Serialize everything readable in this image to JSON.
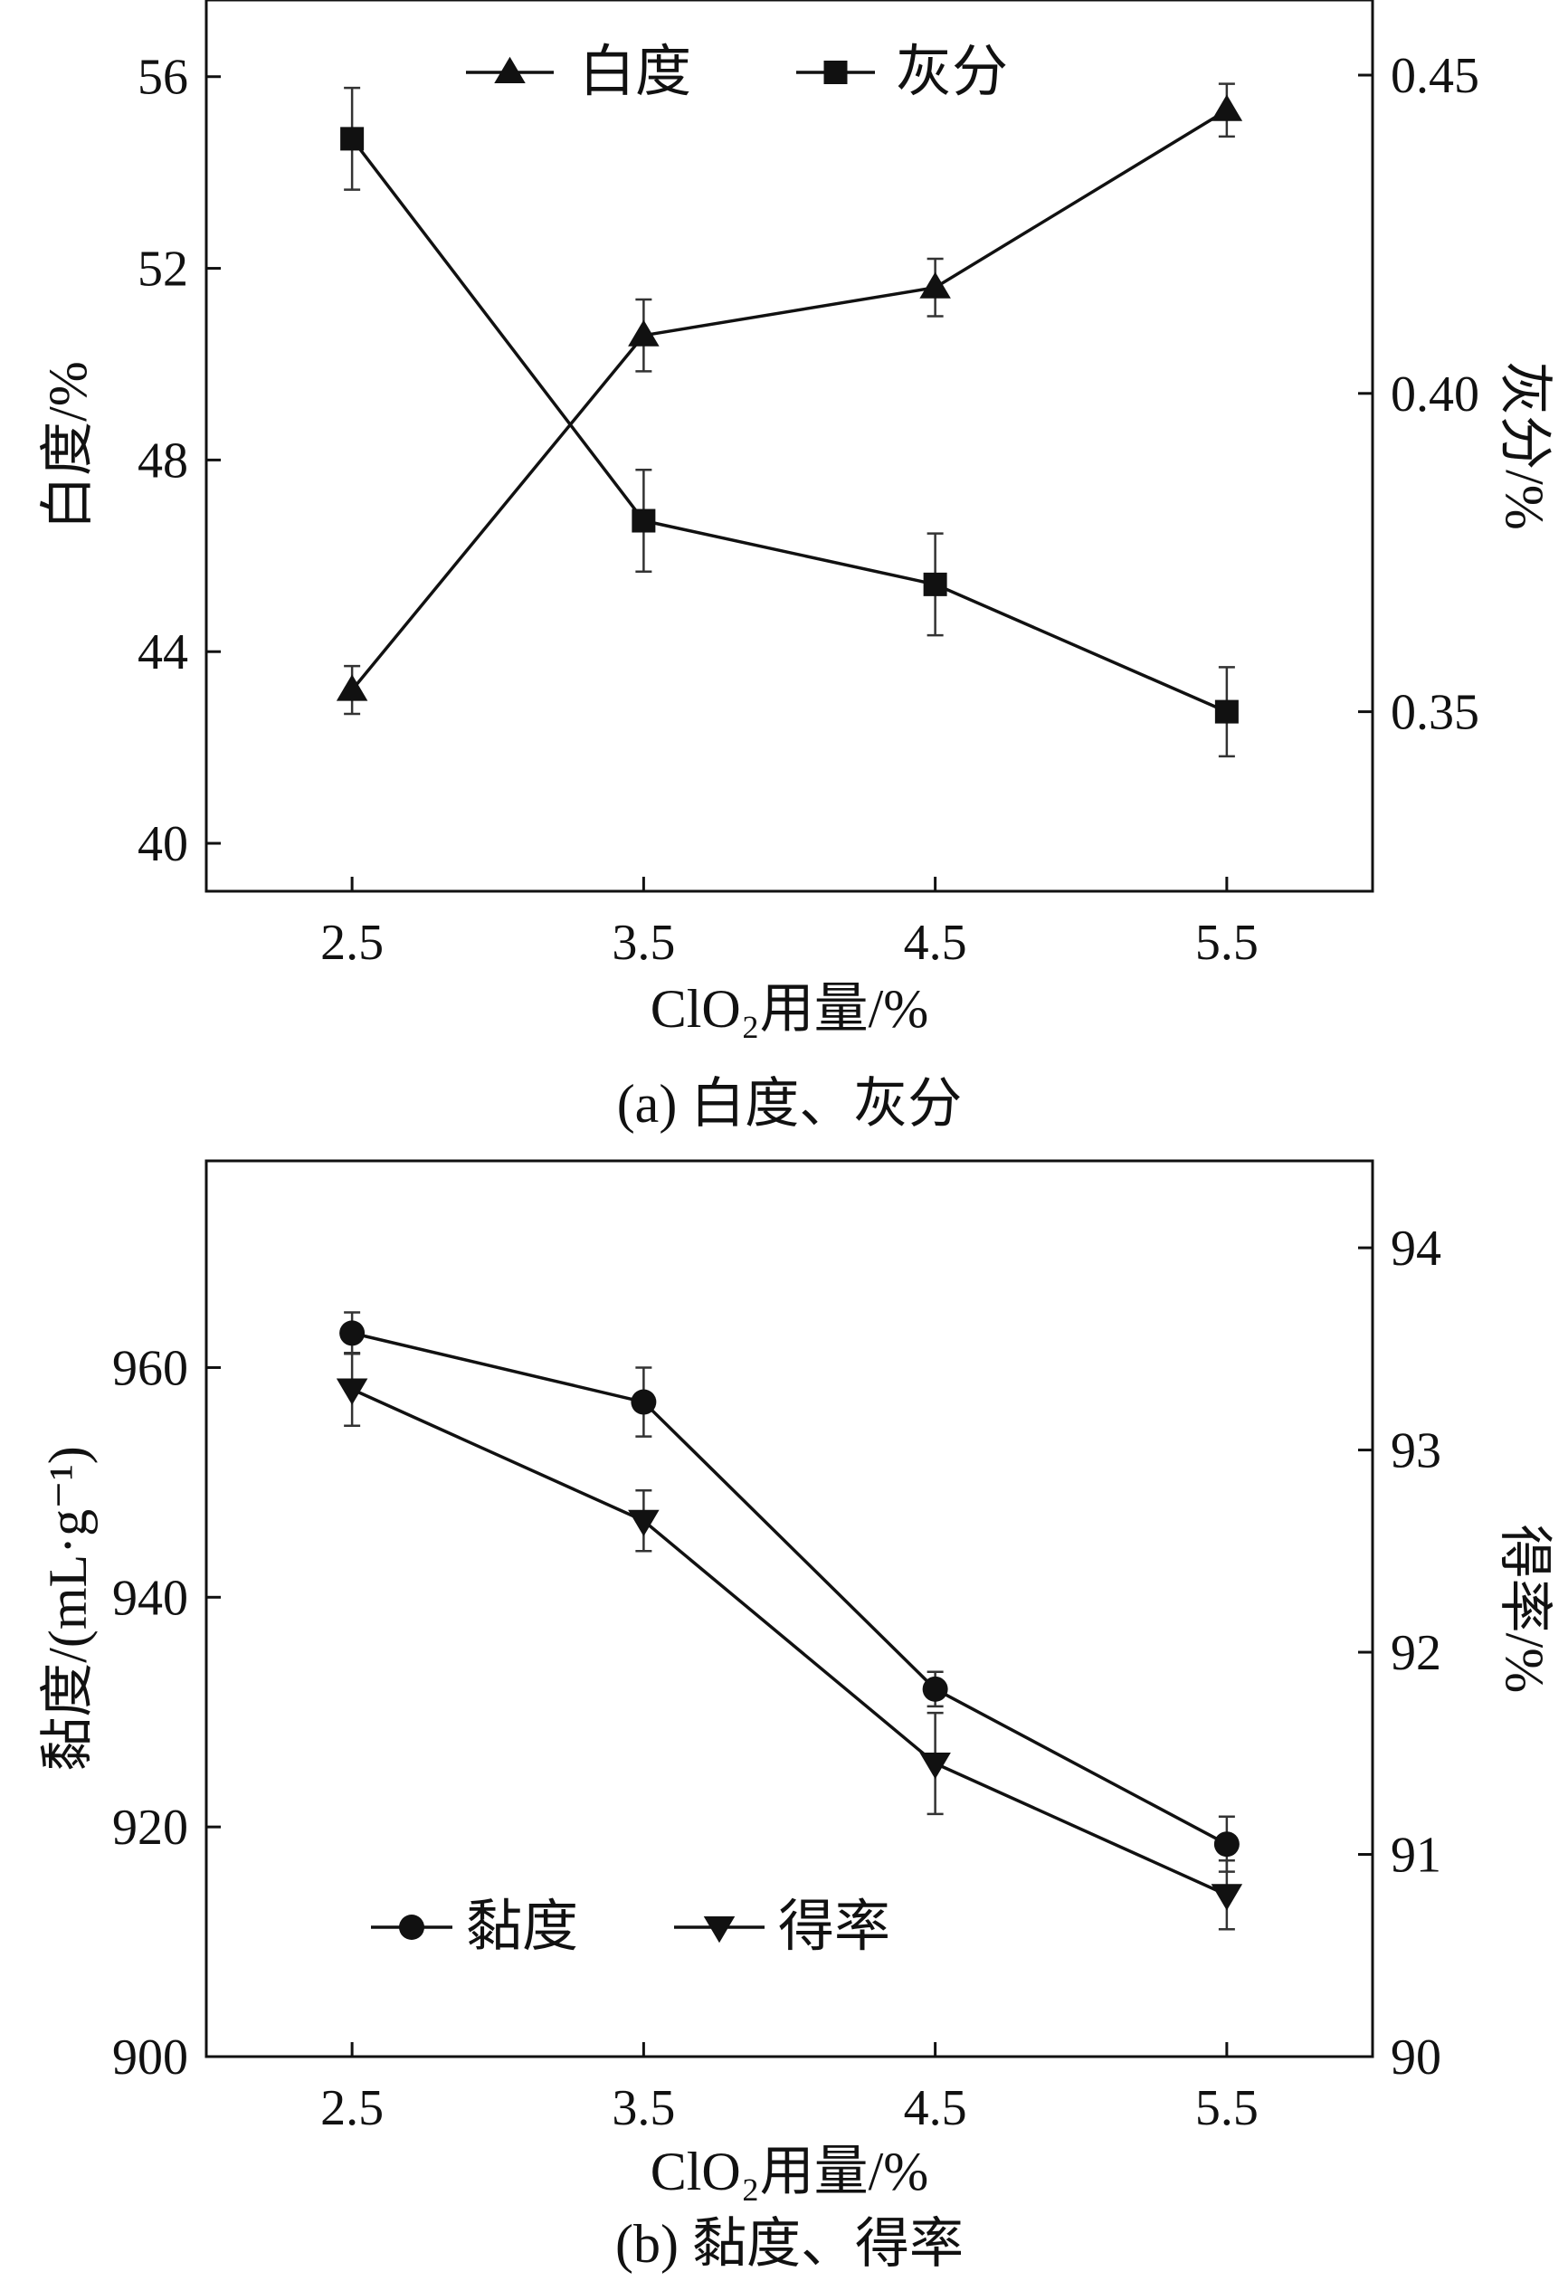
{
  "chart_data": [
    {
      "type": "line",
      "caption": "(a) 白度、灰分",
      "x_title": "ClO₂用量/%",
      "x_categories": [
        "2.5",
        "3.5",
        "4.5",
        "5.5"
      ],
      "x_values": [
        2.5,
        3.5,
        4.5,
        5.5
      ],
      "x_range": [
        2.0,
        6.0
      ],
      "left_axis": {
        "title": "白度/%",
        "range": [
          39,
          57.6
        ],
        "ticks": [
          40,
          44,
          48,
          52,
          56
        ],
        "tick_labels": [
          "40",
          "44",
          "48",
          "52",
          "56"
        ]
      },
      "right_axis": {
        "title": "灰分/%",
        "range": [
          0.3218,
          0.4618
        ],
        "ticks": [
          0.35,
          0.4,
          0.45
        ],
        "tick_labels": [
          "0.35",
          "0.40",
          "0.45"
        ]
      },
      "legend_position": "top-center",
      "series": [
        {
          "name": "白度",
          "axis": "left",
          "marker": "triangle-up",
          "values": [
            43.2,
            50.6,
            51.6,
            55.3
          ],
          "errors": [
            0.5,
            0.75,
            0.6,
            0.55
          ]
        },
        {
          "name": "灰分",
          "axis": "right",
          "marker": "square",
          "values": [
            0.44,
            0.38,
            0.37,
            0.35
          ],
          "errors": [
            0.008,
            0.008,
            0.008,
            0.007
          ]
        }
      ]
    },
    {
      "type": "line",
      "caption": "(b) 黏度、得率",
      "x_title": "ClO₂用量/%",
      "x_categories": [
        "2.5",
        "3.5",
        "4.5",
        "5.5"
      ],
      "x_values": [
        2.5,
        3.5,
        4.5,
        5.5
      ],
      "x_range": [
        2.0,
        6.0
      ],
      "left_axis": {
        "title": "黏度/(mL·g⁻¹)",
        "range": [
          900,
          978
        ],
        "ticks": [
          900,
          920,
          940,
          960
        ],
        "tick_labels": [
          "900",
          "920",
          "940",
          "960"
        ]
      },
      "right_axis": {
        "title": "得率/%",
        "range": [
          90,
          94.43
        ],
        "ticks": [
          90,
          91,
          92,
          93,
          94
        ],
        "tick_labels": [
          "90",
          "91",
          "92",
          "93",
          "94"
        ]
      },
      "legend_position": "bottom-left",
      "series": [
        {
          "name": "黏度",
          "axis": "left",
          "marker": "circle",
          "values": [
            963.0,
            957.0,
            932.0,
            918.5
          ],
          "errors": [
            1.8,
            3.0,
            1.5,
            2.4
          ]
        },
        {
          "name": "得率",
          "axis": "right",
          "marker": "triangle-down",
          "values": [
            93.3,
            92.65,
            91.45,
            90.8
          ],
          "errors": [
            0.18,
            0.15,
            0.25,
            0.17
          ]
        }
      ]
    }
  ]
}
